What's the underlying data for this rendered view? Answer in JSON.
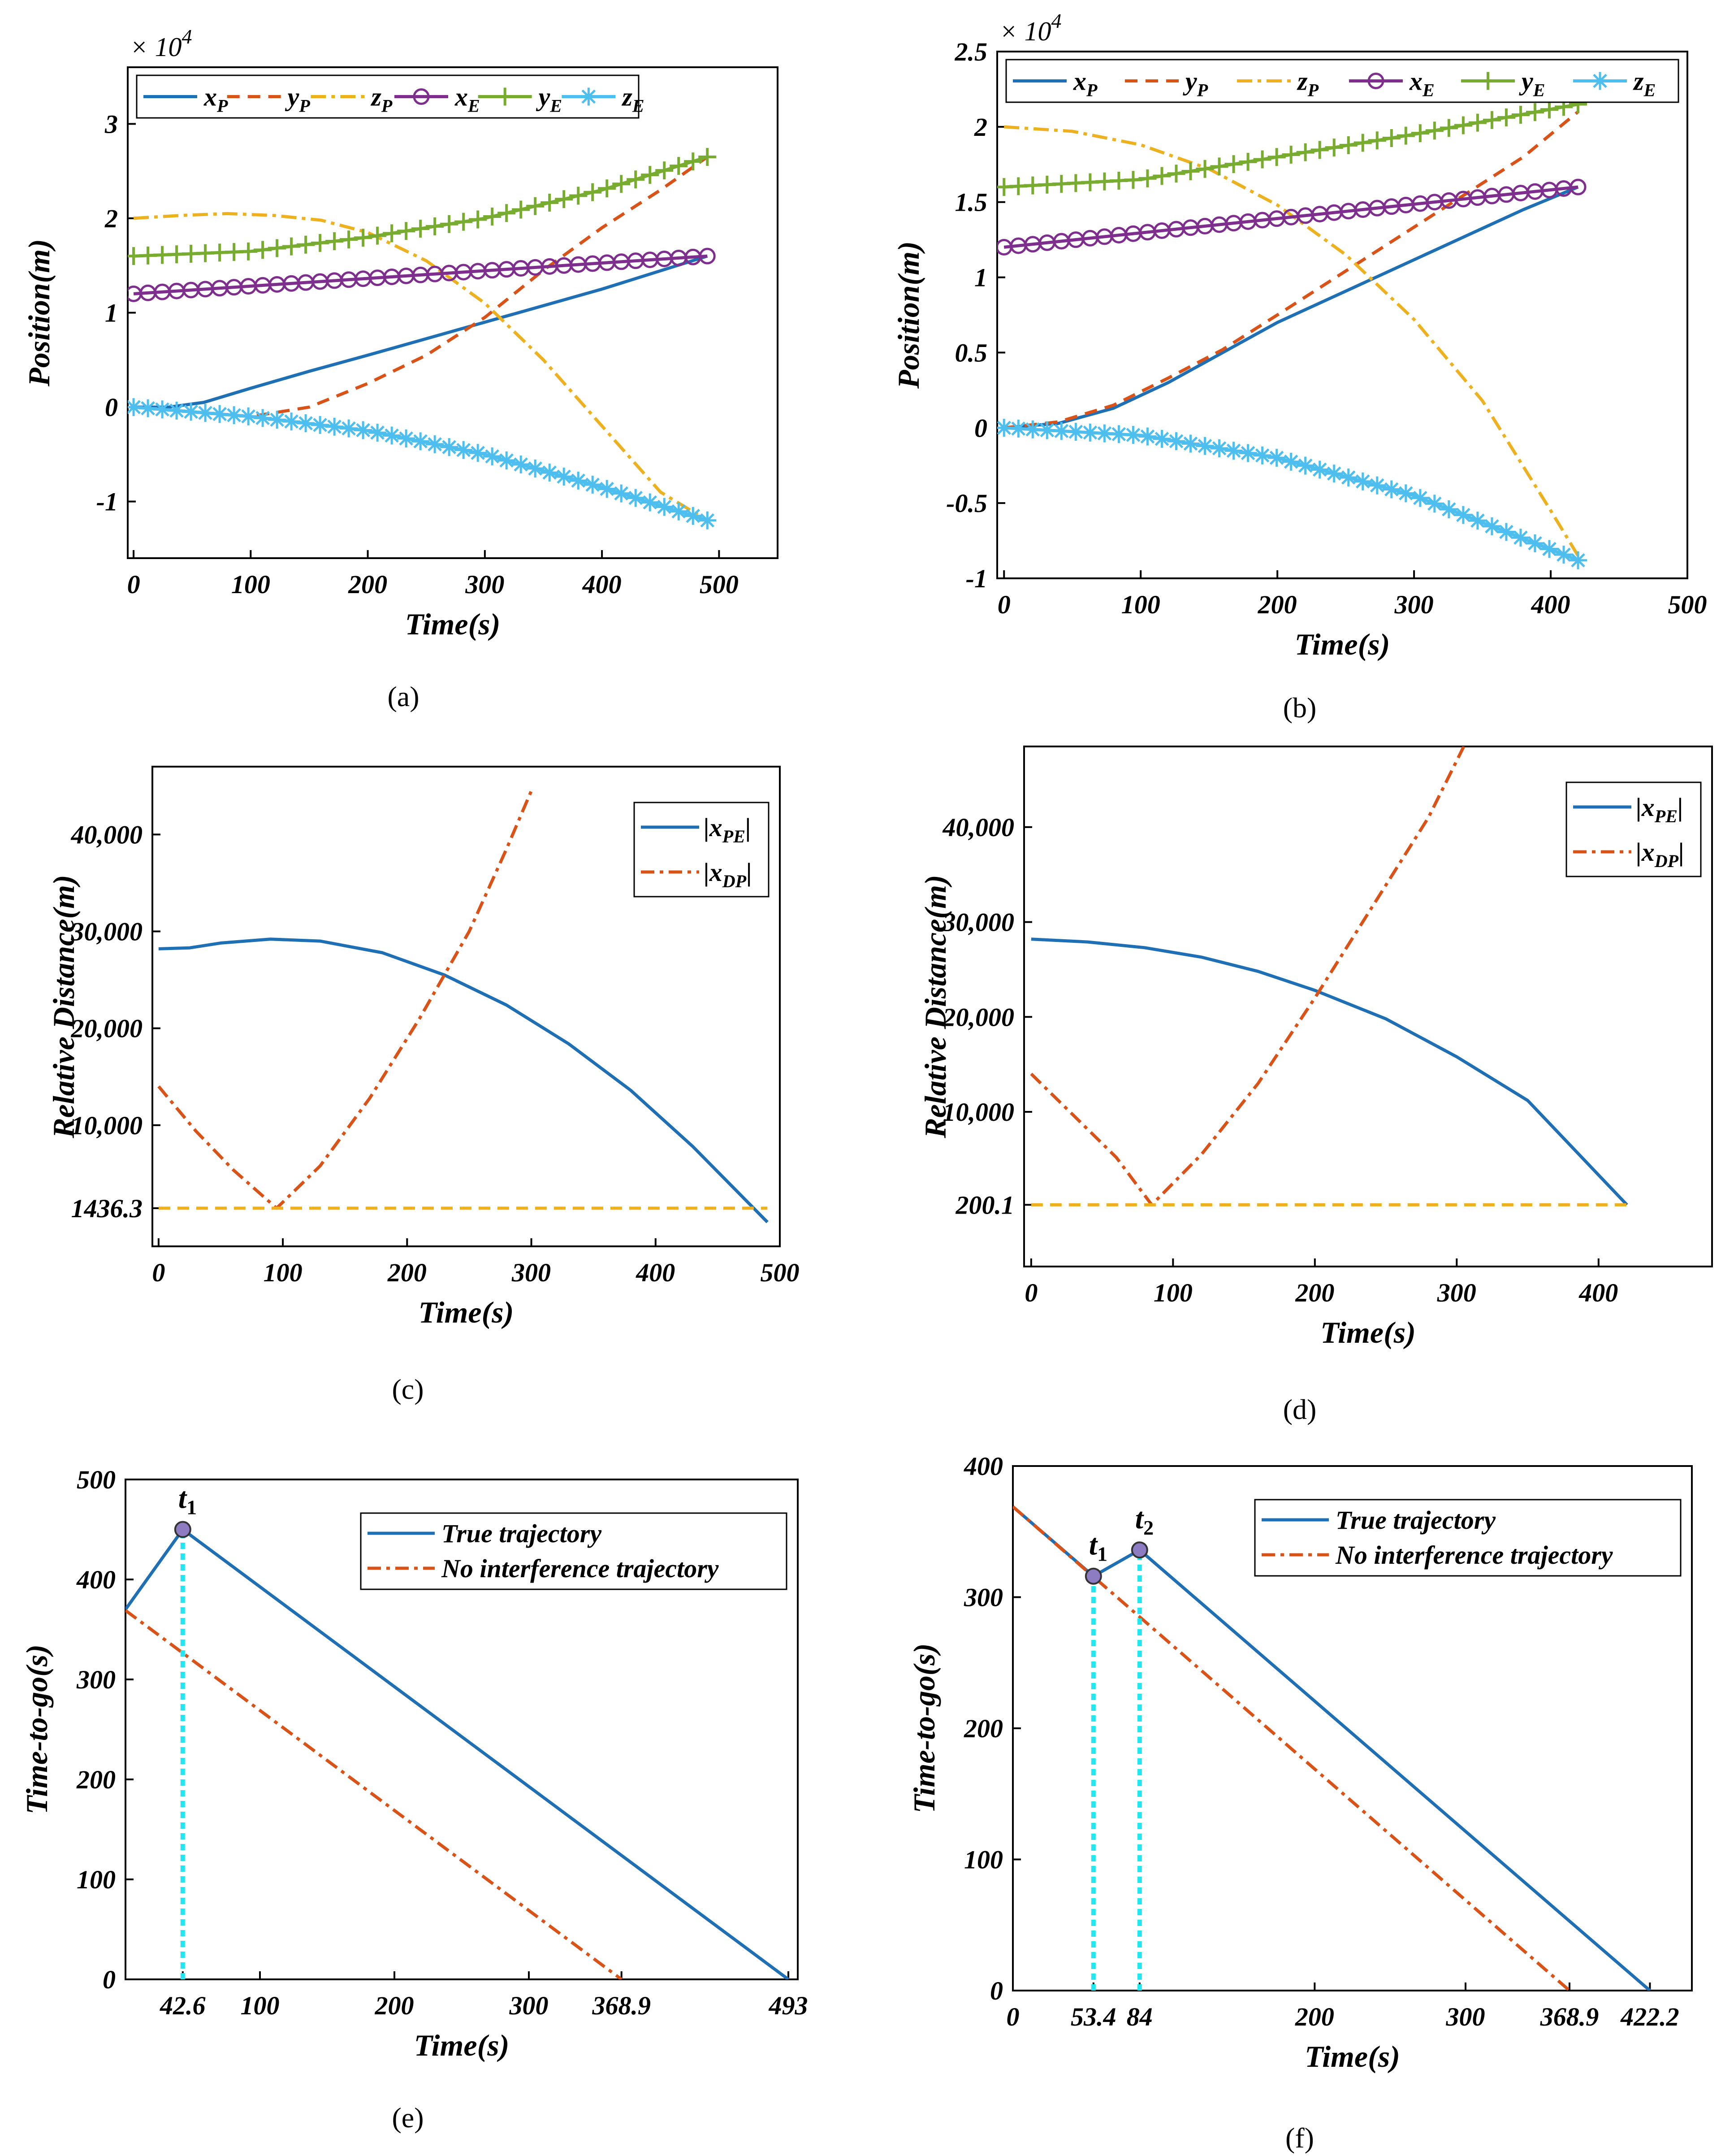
{
  "colors": {
    "blue": "#1f6fb5",
    "orange": "#d95319",
    "yellow": "#edb120",
    "purple": "#7e2f8e",
    "green": "#77ac30",
    "cyan": "#4dbeee",
    "cyanDash": "#22e6f0"
  },
  "chart_data": [
    {
      "id": "a",
      "type": "line",
      "panel_label": "(a)",
      "xlabel": "Time(s)",
      "ylabel": "Position(m)",
      "multiplier": "× 10^4",
      "xlim": [
        -5,
        550
      ],
      "ylim": [
        -1.6,
        3.6
      ],
      "xticks": [
        0,
        100,
        200,
        300,
        400,
        500
      ],
      "yticks": [
        -1,
        0,
        1,
        2,
        3
      ],
      "ytick_labels": [
        "-1",
        "0",
        "1",
        "2",
        "3"
      ],
      "legend": [
        "x_P",
        "y_P",
        "z_P",
        "x_E",
        "y_E",
        "z_E"
      ],
      "series": [
        {
          "name": "x_P",
          "x": [
            0,
            30,
            60,
            100,
            150,
            200,
            300,
            400,
            490
          ],
          "y": [
            0,
            0,
            0.05,
            0.2,
            0.38,
            0.55,
            0.9,
            1.25,
            1.6
          ]
        },
        {
          "name": "y_P",
          "x": [
            0,
            100,
            150,
            200,
            250,
            300,
            350,
            400,
            450,
            490
          ],
          "y": [
            0,
            -0.1,
            0,
            0.25,
            0.55,
            0.95,
            1.45,
            1.9,
            2.3,
            2.65
          ]
        },
        {
          "name": "z_P",
          "x": [
            0,
            40,
            80,
            120,
            160,
            200,
            250,
            300,
            350,
            400,
            450,
            490
          ],
          "y": [
            2,
            2.03,
            2.05,
            2.03,
            1.98,
            1.85,
            1.55,
            1.1,
            0.5,
            -0.2,
            -0.9,
            -1.2
          ]
        },
        {
          "name": "x_E",
          "x": [
            0,
            490
          ],
          "y": [
            1.2,
            1.6
          ]
        },
        {
          "name": "y_E",
          "x": [
            0,
            100,
            200,
            300,
            400,
            490
          ],
          "y": [
            1.6,
            1.65,
            1.8,
            2.0,
            2.3,
            2.65
          ]
        },
        {
          "name": "z_E",
          "x": [
            0,
            100,
            200,
            300,
            400,
            490
          ],
          "y": [
            0,
            -0.1,
            -0.25,
            -0.5,
            -0.85,
            -1.2
          ]
        }
      ]
    },
    {
      "id": "b",
      "type": "line",
      "panel_label": "(b)",
      "xlabel": "Time(s)",
      "ylabel": "Position(m)",
      "multiplier": "× 10^4",
      "xlim": [
        -5,
        500
      ],
      "ylim": [
        -1,
        2.5
      ],
      "xticks": [
        0,
        100,
        200,
        300,
        400,
        500
      ],
      "yticks": [
        -1,
        -0.5,
        0,
        0.5,
        1,
        1.5,
        2,
        2.5
      ],
      "ytick_labels": [
        "-1",
        "-0.5",
        "0",
        "0.5",
        "1",
        "1.5",
        "2",
        "2.5"
      ],
      "legend": [
        "x_P",
        "y_P",
        "z_P",
        "x_E",
        "y_E",
        "z_E"
      ],
      "series": [
        {
          "name": "x_P",
          "x": [
            0,
            40,
            80,
            120,
            160,
            200,
            260,
            320,
            380,
            420
          ],
          "y": [
            0,
            0.03,
            0.13,
            0.3,
            0.5,
            0.7,
            0.95,
            1.2,
            1.45,
            1.6
          ]
        },
        {
          "name": "y_P",
          "x": [
            0,
            40,
            80,
            120,
            160,
            200,
            260,
            320,
            380,
            420
          ],
          "y": [
            0,
            0.04,
            0.15,
            0.33,
            0.52,
            0.75,
            1.1,
            1.45,
            1.8,
            2.1
          ]
        },
        {
          "name": "z_P",
          "x": [
            0,
            50,
            100,
            150,
            200,
            250,
            300,
            350,
            400,
            420
          ],
          "y": [
            2,
            1.97,
            1.88,
            1.72,
            1.48,
            1.15,
            0.72,
            0.18,
            -0.55,
            -0.85
          ]
        },
        {
          "name": "x_E",
          "x": [
            0,
            420
          ],
          "y": [
            1.2,
            1.6
          ]
        },
        {
          "name": "y_E",
          "x": [
            0,
            100,
            200,
            300,
            420
          ],
          "y": [
            1.6,
            1.65,
            1.8,
            1.95,
            2.15
          ]
        },
        {
          "name": "z_E",
          "x": [
            0,
            100,
            200,
            300,
            420
          ],
          "y": [
            0,
            -0.05,
            -0.2,
            -0.45,
            -0.88
          ]
        }
      ]
    },
    {
      "id": "c",
      "type": "line",
      "panel_label": "(c)",
      "xlabel": "Time(s)",
      "ylabel": "Relative Distance(m)",
      "xlim": [
        -5,
        500
      ],
      "ylim": [
        -2500,
        47000
      ],
      "xticks": [
        0,
        100,
        200,
        300,
        400,
        500
      ],
      "yticks": [
        1436.3,
        10000,
        20000,
        30000,
        40000
      ],
      "ytick_labels": [
        "1436.3",
        "10,000",
        "20,000",
        "30,000",
        "40,000"
      ],
      "legend": [
        "|x_PE|",
        "|x_DP|"
      ],
      "series": [
        {
          "name": "|x_PE|",
          "x": [
            0,
            25,
            50,
            90,
            130,
            180,
            230,
            280,
            330,
            380,
            430,
            490
          ],
          "y": [
            28200,
            28300,
            28800,
            29200,
            29000,
            27800,
            25500,
            22400,
            18400,
            13600,
            7800,
            0
          ]
        },
        {
          "name": "|x_DP|",
          "x": [
            0,
            30,
            60,
            95,
            130,
            170,
            210,
            250,
            280,
            300
          ],
          "y": [
            14000,
            9400,
            5400,
            1436,
            5800,
            12800,
            21000,
            30000,
            38500,
            44500
          ]
        },
        {
          "name": "min_line",
          "x": [
            0,
            490
          ],
          "y": [
            1436.3,
            1436.3
          ]
        }
      ]
    },
    {
      "id": "d",
      "type": "line",
      "panel_label": "(d)",
      "xlabel": "Time(s)",
      "ylabel": "Relative Distance(m)",
      "xlim": [
        -5,
        480
      ],
      "ylim": [
        -6300,
        48500
      ],
      "xticks": [
        0,
        100,
        200,
        300,
        400
      ],
      "yticks": [
        200.1,
        10000,
        20000,
        30000,
        40000
      ],
      "ytick_labels": [
        "200.1",
        "10,000",
        "20,000",
        "30,000",
        "40,000"
      ],
      "legend": [
        "|x_PE|",
        "|x_DP|"
      ],
      "series": [
        {
          "name": "|x_PE|",
          "x": [
            0,
            40,
            80,
            120,
            160,
            200,
            250,
            300,
            350,
            420
          ],
          "y": [
            28200,
            27900,
            27300,
            26300,
            24800,
            22800,
            19800,
            15800,
            11200,
            200
          ]
        },
        {
          "name": "|x_DP|",
          "x": [
            0,
            30,
            60,
            85,
            120,
            160,
            200,
            240,
            280,
            305
          ],
          "y": [
            14000,
            9600,
            5200,
            200,
            5500,
            13000,
            22000,
            31500,
            41000,
            48500
          ]
        },
        {
          "name": "min_line",
          "x": [
            0,
            420
          ],
          "y": [
            200.1,
            200.1
          ]
        }
      ]
    },
    {
      "id": "e",
      "type": "line",
      "panel_label": "(e)",
      "xlabel": "Time(s)",
      "ylabel": "Time-to-go(s)",
      "xlim": [
        0,
        500
      ],
      "ylim": [
        0,
        500
      ],
      "xticks": [
        42.6,
        100,
        200,
        300,
        368.9,
        493
      ],
      "yticks": [
        0,
        100,
        200,
        300,
        400,
        500
      ],
      "xtick_labels": [
        "42.6",
        "100",
        "200",
        "300",
        "368.9",
        "493"
      ],
      "ytick_labels": [
        "0",
        "100",
        "200",
        "300",
        "400",
        "500"
      ],
      "legend": [
        "True trajectory",
        "No interference trajectory"
      ],
      "annotations": [
        {
          "text": "t1",
          "x": 42.6,
          "y": 450
        }
      ],
      "series": [
        {
          "name": "True trajectory",
          "x": [
            0,
            42.6,
            493
          ],
          "y": [
            370,
            450,
            0
          ]
        },
        {
          "name": "No interference trajectory",
          "x": [
            0,
            368.9
          ],
          "y": [
            369,
            0
          ]
        },
        {
          "name": "t1_marker",
          "x": [
            42.6,
            42.6
          ],
          "y": [
            0,
            450
          ]
        }
      ]
    },
    {
      "id": "f",
      "type": "line",
      "panel_label": "(f)",
      "xlabel": "Time(s)",
      "ylabel": "Time-to-go(s)",
      "xlim": [
        0,
        450
      ],
      "ylim": [
        0,
        400
      ],
      "xticks": [
        0,
        53.4,
        84,
        200,
        300,
        368.9,
        422.2
      ],
      "yticks": [
        0,
        100,
        200,
        300,
        400
      ],
      "xtick_labels": [
        "0",
        "53.4",
        "84",
        "200",
        "300",
        "368.9",
        "422.2"
      ],
      "ytick_labels": [
        "0",
        "100",
        "200",
        "300",
        "400"
      ],
      "legend": [
        "True trajectory",
        "No interference trajectory"
      ],
      "annotations": [
        {
          "text": "t1",
          "x": 53.4,
          "y": 316
        },
        {
          "text": "t2",
          "x": 84,
          "y": 336
        }
      ],
      "series": [
        {
          "name": "True trajectory",
          "x": [
            0,
            53.4,
            84,
            422.2
          ],
          "y": [
            369,
            316,
            336,
            0
          ]
        },
        {
          "name": "No interference trajectory",
          "x": [
            0,
            368.9
          ],
          "y": [
            369,
            0
          ]
        },
        {
          "name": "t1_marker",
          "x": [
            53.4,
            53.4
          ],
          "y": [
            0,
            316
          ]
        },
        {
          "name": "t2_marker",
          "x": [
            84,
            84
          ],
          "y": [
            0,
            336
          ]
        }
      ]
    }
  ]
}
